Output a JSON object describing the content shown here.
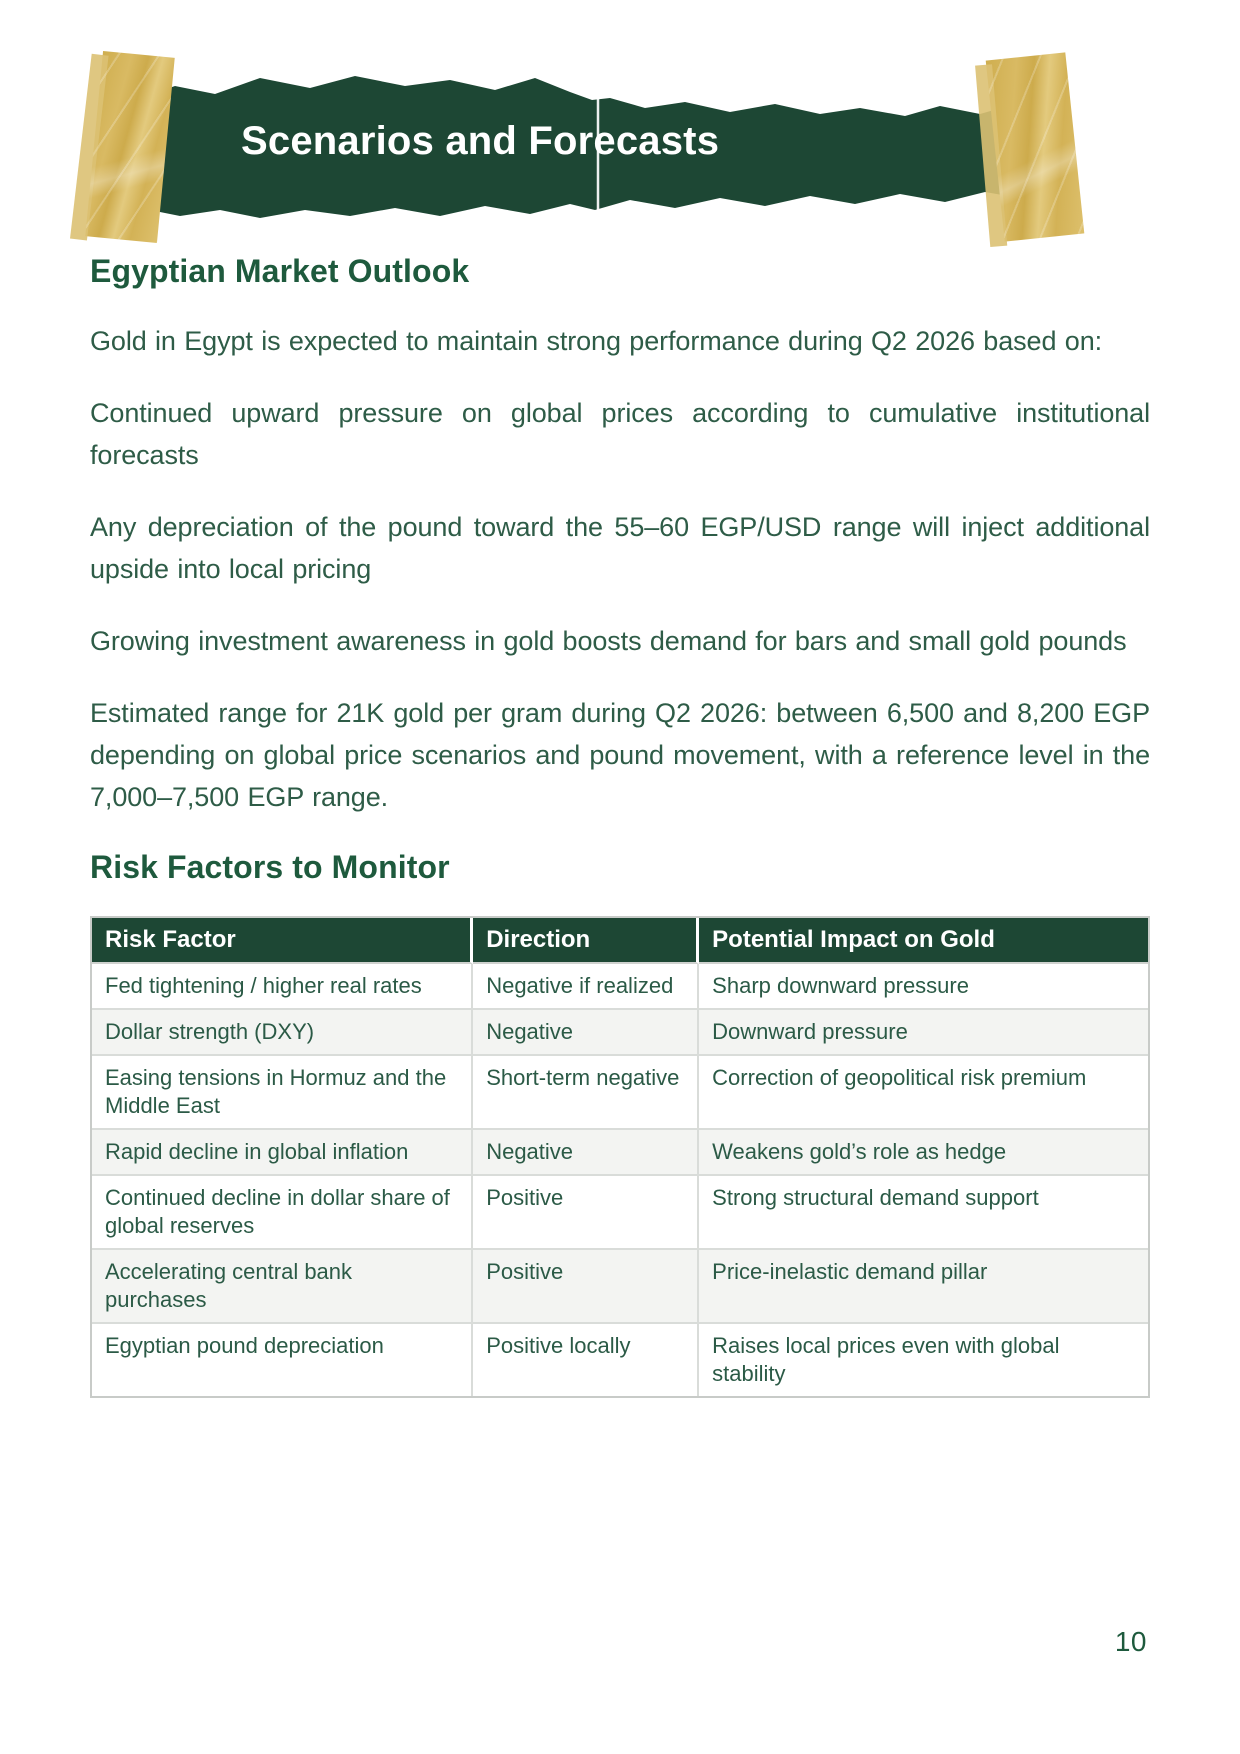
{
  "colors": {
    "banner_green": "#1d4734",
    "heading_green": "#1e5a3d",
    "body_green": "#2e5c47",
    "tape_gold": "#d6b65e",
    "table_alt_row": "#f3f4f2"
  },
  "banner": {
    "title": "Scenarios and Forecasts"
  },
  "outlook": {
    "heading": "Egyptian Market Outlook",
    "paragraphs": [
      "Gold in Egypt is expected to maintain strong performance during Q2 2026 based on:",
      "Continued upward pressure on global prices according to cumulative institutional forecasts",
      "Any depreciation of the pound toward the 55–60 EGP/USD range will inject additional upside into local pricing",
      "Growing investment awareness in gold boosts demand for bars and small gold pounds",
      "Estimated range for 21K gold per gram during Q2 2026: between 6,500 and 8,200 EGP depending on global price scenarios and pound movement, with a reference level in the 7,000–7,500 EGP range."
    ]
  },
  "risks": {
    "heading": "Risk Factors to Monitor",
    "table": {
      "headers": [
        "Risk Factor",
        "Direction",
        "Potential Impact on Gold"
      ],
      "rows": [
        [
          "Fed tightening / higher real rates",
          "Negative if realized",
          "Sharp downward pressure"
        ],
        [
          "Dollar strength (DXY)",
          "Negative",
          "Downward pressure"
        ],
        [
          "Easing tensions in Hormuz and the Middle East",
          "Short-term negative",
          "Correction of geopolitical risk premium"
        ],
        [
          "Rapid decline in global inflation",
          "Negative",
          "Weakens gold’s role as hedge"
        ],
        [
          "Continued decline in dollar share of global reserves",
          "Positive",
          "Strong structural demand support"
        ],
        [
          "Accelerating central bank purchases",
          "Positive",
          "Price-inelastic demand pillar"
        ],
        [
          "Egyptian pound depreciation",
          "Positive locally",
          "Raises local prices even with global stability"
        ]
      ]
    }
  },
  "page": {
    "number": "10"
  }
}
